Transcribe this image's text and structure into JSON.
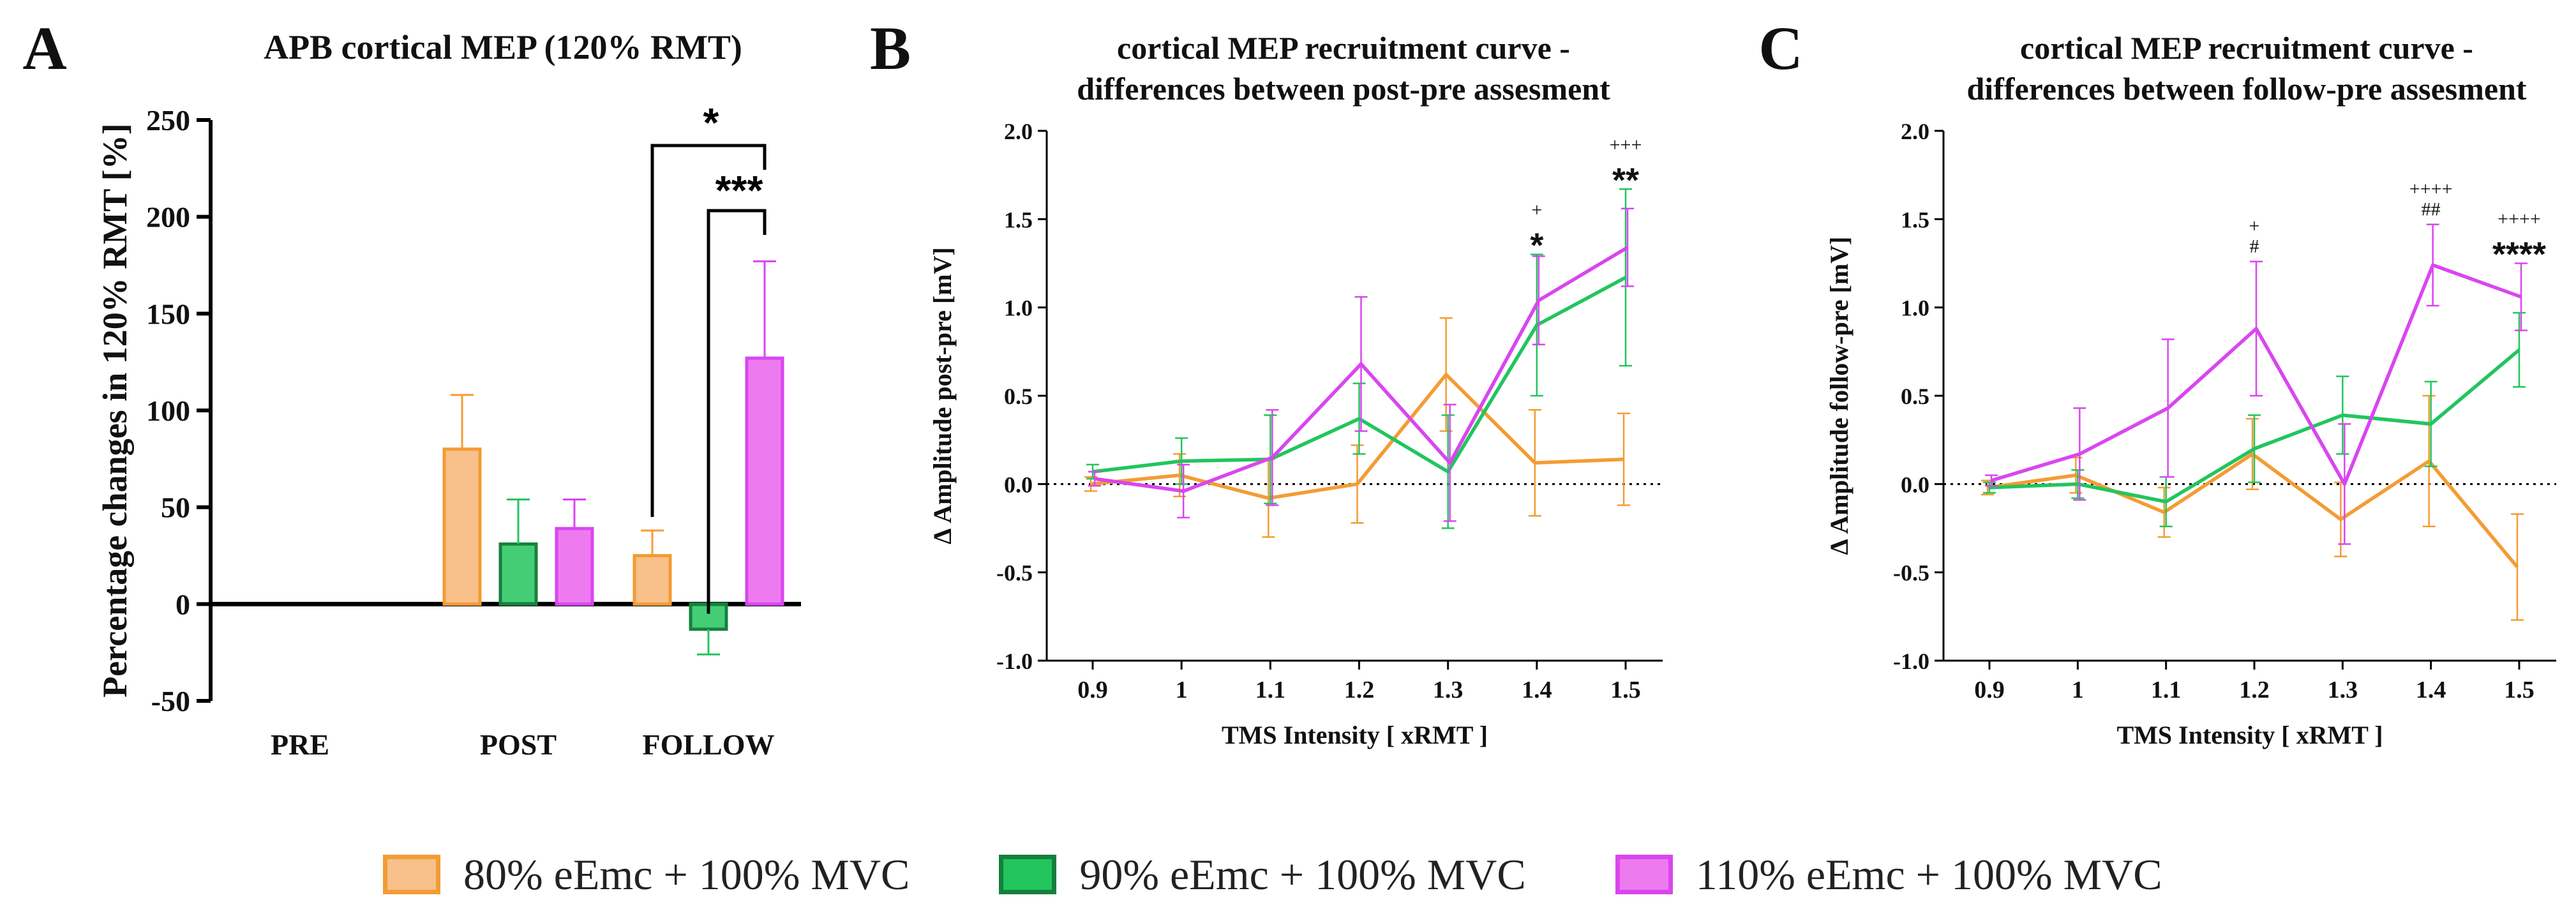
{
  "figure": {
    "legend": [
      "80% eEmc + 100% MVC",
      "90% eEmc + 100% MVC",
      "110% eEmc + 100% MVC"
    ]
  },
  "colors": {
    "orange": "#F39C34",
    "green": "#22C55E",
    "magenta": "#D946EF",
    "orange_fill": "#F8C08A",
    "green_fill": "#22C55E",
    "magenta_fill": "#EE7AF0"
  },
  "chart_data": [
    {
      "panel": "A",
      "type": "bar",
      "title": "APB cortical MEP (120% RMT)",
      "xlabel": "",
      "ylabel": "Percentage changes in 120% RMT [%]",
      "ylim": [
        -50,
        250
      ],
      "yticks": [
        "-50",
        "0",
        "50",
        "100",
        "150",
        "200",
        "250"
      ],
      "categories": [
        "PRE",
        "POST",
        "FOLLOW"
      ],
      "series": [
        {
          "name": "80% eEmc + 100% MVC",
          "values": [
            0,
            80,
            25
          ],
          "err": [
            0,
            28,
            13
          ]
        },
        {
          "name": "90% eEmc + 100% MVC",
          "values": [
            0,
            31,
            -13
          ],
          "err": [
            0,
            23,
            13
          ]
        },
        {
          "name": "110% eEmc + 100% MVC",
          "values": [
            0,
            39,
            127
          ],
          "err": [
            0,
            15,
            50
          ]
        }
      ],
      "annotations": [
        {
          "text": "*",
          "from": "80% eEmc + 100% MVC",
          "to": "110% eEmc + 100% MVC",
          "category": "FOLLOW"
        },
        {
          "text": "***",
          "from": "90% eEmc + 100% MVC",
          "to": "110% eEmc + 100% MVC",
          "category": "FOLLOW"
        }
      ]
    },
    {
      "panel": "B",
      "type": "line",
      "title": [
        "cortical MEP recruitment curve -",
        "differences between post-pre assesment"
      ],
      "xlabel": "TMS Intensity [ xRMT ]",
      "ylabel": "Δ Amplitude post-pre [mV]",
      "x": [
        "0.9",
        "1",
        "1.1",
        "1.2",
        "1.3",
        "1.4",
        "1.5"
      ],
      "ylim": [
        -1.0,
        2.0
      ],
      "yticks": [
        "-1.0",
        "-0.5",
        "0.0",
        "0.5",
        "1.0",
        "1.5",
        "2.0"
      ],
      "series": [
        {
          "name": "80% eEmc + 100% MVC",
          "values": [
            0.0,
            0.05,
            -0.08,
            0.0,
            0.62,
            0.12,
            0.14
          ],
          "err": [
            0.04,
            0.12,
            0.22,
            0.22,
            0.32,
            0.3,
            0.26
          ]
        },
        {
          "name": "90% eEmc + 100% MVC",
          "values": [
            0.07,
            0.13,
            0.14,
            0.37,
            0.07,
            0.9,
            1.17
          ],
          "err": [
            0.04,
            0.13,
            0.25,
            0.2,
            0.32,
            0.4,
            0.5
          ]
        },
        {
          "name": "110% eEmc + 100% MVC",
          "values": [
            0.03,
            -0.04,
            0.15,
            0.68,
            0.12,
            1.04,
            1.34
          ],
          "err": [
            0.04,
            0.15,
            0.27,
            0.38,
            0.33,
            0.25,
            0.22
          ]
        }
      ],
      "annotations": [
        {
          "x": "1.4",
          "lines": [
            "+",
            "*"
          ]
        },
        {
          "x": "1.5",
          "lines": [
            "+++",
            "**"
          ]
        }
      ]
    },
    {
      "panel": "C",
      "type": "line",
      "title": [
        "cortical MEP recruitment curve -",
        "differences between follow-pre assesment"
      ],
      "xlabel": "TMS Intensity [ xRMT ]",
      "ylabel": "Δ Amplitude follow-pre [mV]",
      "x": [
        "0.9",
        "1",
        "1.1",
        "1.2",
        "1.3",
        "1.4",
        "1.5"
      ],
      "ylim": [
        -1.0,
        2.0
      ],
      "yticks": [
        "-1.0",
        "-0.5",
        "0.0",
        "0.5",
        "1.0",
        "1.5",
        "2.0"
      ],
      "series": [
        {
          "name": "80% eEmc + 100% MVC",
          "values": [
            -0.02,
            0.05,
            -0.16,
            0.17,
            -0.2,
            0.13,
            -0.47
          ],
          "err": [
            0.04,
            0.1,
            0.14,
            0.2,
            0.21,
            0.37,
            0.3
          ]
        },
        {
          "name": "90% eEmc + 100% MVC",
          "values": [
            -0.02,
            0.0,
            -0.1,
            0.2,
            0.39,
            0.34,
            0.76
          ],
          "err": [
            0.03,
            0.08,
            0.14,
            0.19,
            0.22,
            0.24,
            0.21
          ]
        },
        {
          "name": "110% eEmc + 100% MVC",
          "values": [
            0.02,
            0.17,
            0.43,
            0.88,
            0.0,
            1.24,
            1.06
          ],
          "err": [
            0.03,
            0.26,
            0.39,
            0.38,
            0.34,
            0.23,
            0.19
          ]
        }
      ],
      "annotations": [
        {
          "x": "1.2",
          "lines": [
            "+",
            "#"
          ]
        },
        {
          "x": "1.4",
          "lines": [
            "++++",
            "##"
          ]
        },
        {
          "x": "1.5",
          "lines": [
            "++++",
            "****"
          ]
        }
      ]
    }
  ],
  "panel_labels": [
    "A",
    "B",
    "C"
  ]
}
